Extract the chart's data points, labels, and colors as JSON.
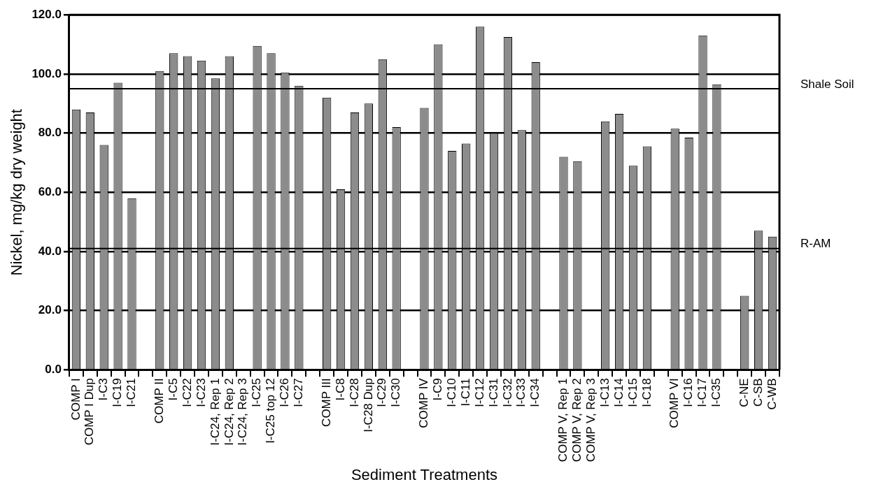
{
  "chart_data": {
    "type": "bar",
    "xlabel": "Sediment Treatments",
    "ylabel": "Nickel, mg/kg dry weight",
    "categories": [
      "COMP I",
      "COMP I Dup",
      "I-C3",
      "I-C19",
      "I-C21",
      null,
      "COMP II",
      "I-C5",
      "I-C22",
      "I-C23",
      "I-C24, Rep 1",
      "I-C24, Rep 2",
      "I-C24, Rep 3",
      "I-C25",
      "I-C25 top 12",
      "I-C26",
      "I-C27",
      null,
      "COMP III",
      "I-C8",
      "I-C28",
      "I-C28 Dup",
      "I-C29",
      "I-C30",
      null,
      "COMP IV",
      "I-C9",
      "I-C10",
      "I-C11",
      "I-C12",
      "I-C31",
      "I-C32",
      "I-C33",
      "I-C34",
      null,
      "COMP V, Rep 1",
      "COMP V, Rep 2",
      "COMP V, Rep 3",
      "I-C13",
      "I-C14",
      "I-C15",
      "I-C18",
      null,
      "COMP VI",
      "I-C16",
      "I-C17",
      "I-C35",
      null,
      "C-NE",
      "C-SB",
      "C-WB"
    ],
    "values": [
      88,
      87,
      76,
      97,
      58,
      null,
      101,
      107,
      106,
      104.5,
      98.5,
      106,
      null,
      109.5,
      107,
      100.5,
      96,
      null,
      92,
      61,
      87,
      90,
      105,
      82,
      null,
      88.5,
      110,
      74,
      76.5,
      116,
      80,
      112.5,
      81,
      104,
      null,
      72,
      70.5,
      null,
      84,
      86.5,
      69,
      75.5,
      null,
      81.5,
      78.5,
      113,
      96.5,
      null,
      25,
      47,
      45
    ],
    "color": "#8c8c8c",
    "ylim": [
      0,
      120
    ],
    "yticks": [
      {
        "value": 0,
        "label": "0.0"
      },
      {
        "value": 20,
        "label": "20.0"
      },
      {
        "value": 40,
        "label": "40.0"
      },
      {
        "value": 60,
        "label": "60.0"
      },
      {
        "value": 80,
        "label": "80.0"
      },
      {
        "value": 100,
        "label": "100.0"
      },
      {
        "value": 120,
        "label": "120.0"
      }
    ],
    "grid": "y",
    "ref_lines": [
      {
        "axis": "y",
        "value": 95,
        "label": "Shale Soil",
        "color": "#000000"
      },
      {
        "axis": "y",
        "value": 41,
        "label": "R-AM",
        "color": "#000000"
      }
    ]
  }
}
